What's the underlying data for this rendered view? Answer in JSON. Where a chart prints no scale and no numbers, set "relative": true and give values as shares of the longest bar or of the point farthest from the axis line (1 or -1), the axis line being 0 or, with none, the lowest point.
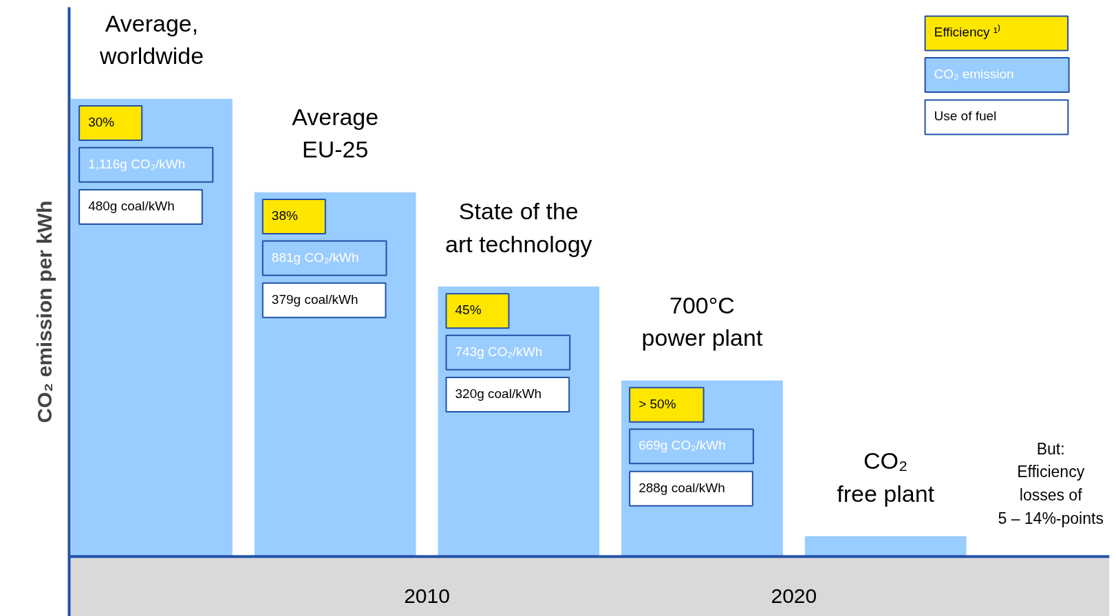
{
  "chart_data": {
    "type": "bar",
    "relative": true,
    "ylabel": "CO₂ emission per kWh",
    "categories": [
      null,
      null,
      null,
      null,
      null
    ],
    "series": [
      {
        "color": "#99ccff",
        "values": [
          1,
          0.796,
          0.59,
          0.385,
          0.045
        ]
      }
    ],
    "annotations": [
      "Average,\nworldwide",
      "Average\nEU-25",
      "State of the\nart technology",
      "700°C\npower plant",
      "CO₂\nfree plant",
      "Efficiency ¹⁾",
      "CO₂ emission",
      "Use of fuel",
      "30%",
      "1,116g CO₂/kWh",
      "480g coal/kWh",
      "38%",
      "881g CO₂/kWh",
      "379g coal/kWh",
      "45%",
      "743g CO₂/kWh",
      "320g coal/kWh",
      "> 50%",
      "669g CO₂/kWh",
      "288g coal/kWh",
      "2010",
      "2020",
      "But:\nEfficiency\nlosses of\n5 – 14%-points"
    ]
  }
}
